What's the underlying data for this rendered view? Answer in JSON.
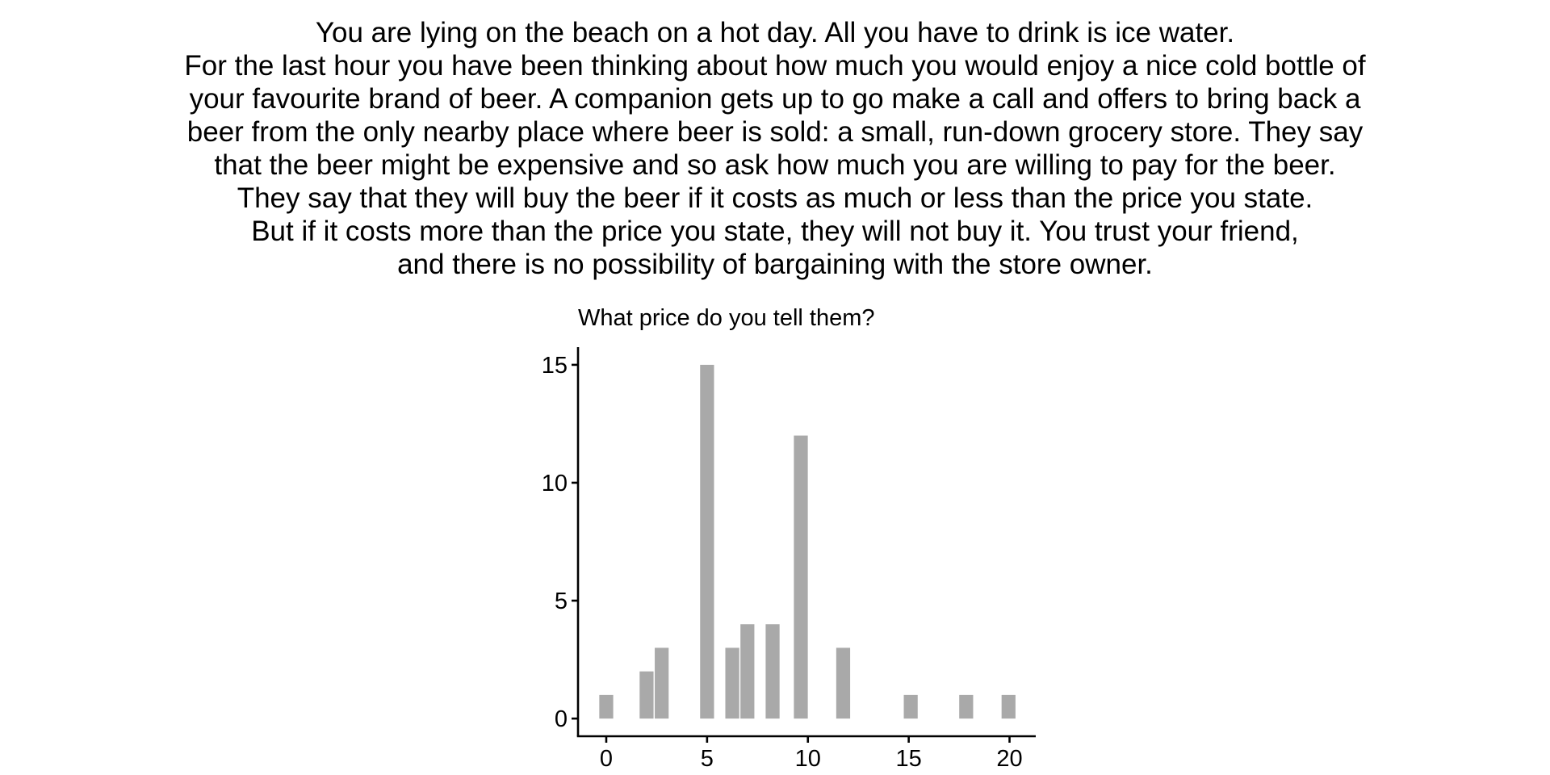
{
  "scenario": {
    "lines": [
      "You are lying on the beach on a hot day. All you have to drink is ice water.",
      "For the last hour you have been thinking about how much you would enjoy a nice cold bottle of",
      "your favourite brand of beer. A companion gets up to go make a call and offers to bring back a",
      "beer from the only nearby place where beer is sold: a small, run-down grocery store. They say",
      "that the beer might be expensive and so ask how much you are willing to pay for the beer.",
      "They say that they will buy the beer if it costs as much or less than the price you state.",
      "But if it costs more than the price you state, they will not buy it. You trust your friend,",
      "and there is no possibility of bargaining with the store owner."
    ]
  },
  "chart_data": {
    "type": "bar",
    "title": "What price do you tell them?",
    "xlabel": "",
    "ylabel": "",
    "bin_width": 0.69,
    "bars": [
      {
        "x": 0,
        "count": 1
      },
      {
        "x": 2,
        "count": 2
      },
      {
        "x": 2.75,
        "count": 3
      },
      {
        "x": 5,
        "count": 15
      },
      {
        "x": 6.25,
        "count": 3
      },
      {
        "x": 7,
        "count": 4
      },
      {
        "x": 8.25,
        "count": 4
      },
      {
        "x": 9.65,
        "count": 12
      },
      {
        "x": 11.75,
        "count": 3
      },
      {
        "x": 15.1,
        "count": 1
      },
      {
        "x": 17.85,
        "count": 1
      },
      {
        "x": 19.95,
        "count": 1
      }
    ],
    "xlim": [
      -1.4,
      21.3
    ],
    "ylim": [
      -0.75,
      15.75
    ],
    "x_ticks": [
      0,
      5,
      10,
      15,
      20
    ],
    "y_ticks": [
      0,
      5,
      10,
      15
    ],
    "x_tick_labels": [
      "0",
      "5",
      "10",
      "15",
      "20"
    ],
    "y_tick_labels": [
      "0",
      "5",
      "10",
      "15"
    ],
    "bar_color": "#a9a9a9",
    "axis_color": "#000000",
    "grid": false,
    "legend": "none"
  }
}
